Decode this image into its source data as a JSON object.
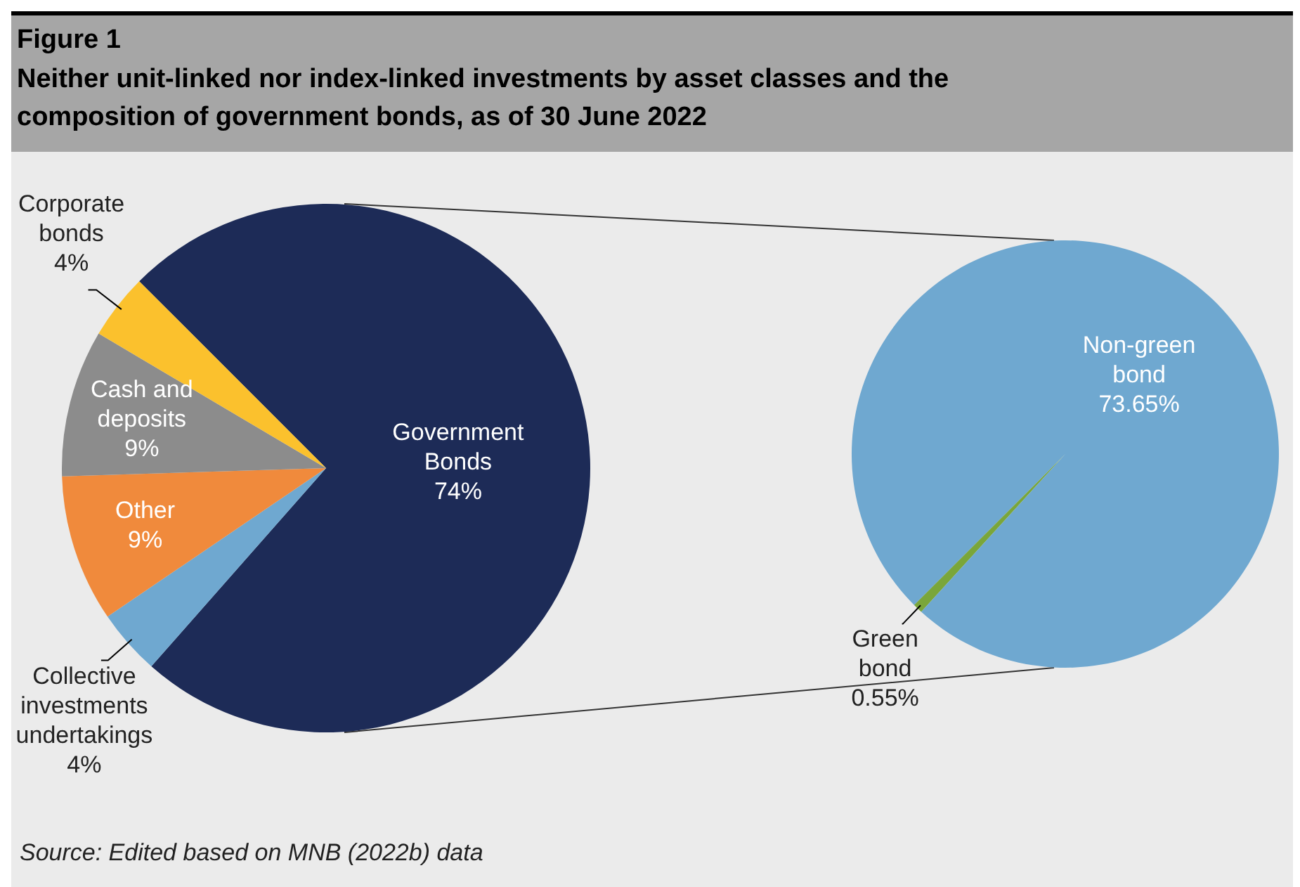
{
  "chart_data": [
    {
      "type": "pie",
      "title": "Figure 1",
      "subtitle": "Neither unit-linked nor index-linked investments by asset classes and the composition of government bonds, as of 30 June 2022",
      "categories": [
        "Government Bonds",
        "Collective investments undertakings",
        "Other",
        "Cash and deposits",
        "Corporate bonds"
      ],
      "values": [
        74,
        4,
        9,
        9,
        4
      ],
      "value_labels": [
        "74%",
        "4%",
        "9%",
        "9%",
        "4%"
      ],
      "colors": [
        "#1d2b57",
        "#6fa8d0",
        "#f08a3c",
        "#8c8c8c",
        "#fbc12d"
      ],
      "annotations": [
        "Source: Edited based on MNB (2022b) data"
      ]
    },
    {
      "type": "pie",
      "categories": [
        "Green bond",
        "Non-green bond"
      ],
      "values": [
        0.55,
        73.65
      ],
      "value_labels": [
        "0.55%",
        "73.65%"
      ],
      "colors": [
        "#7aa63a",
        "#6fa8d0"
      ]
    }
  ]
}
